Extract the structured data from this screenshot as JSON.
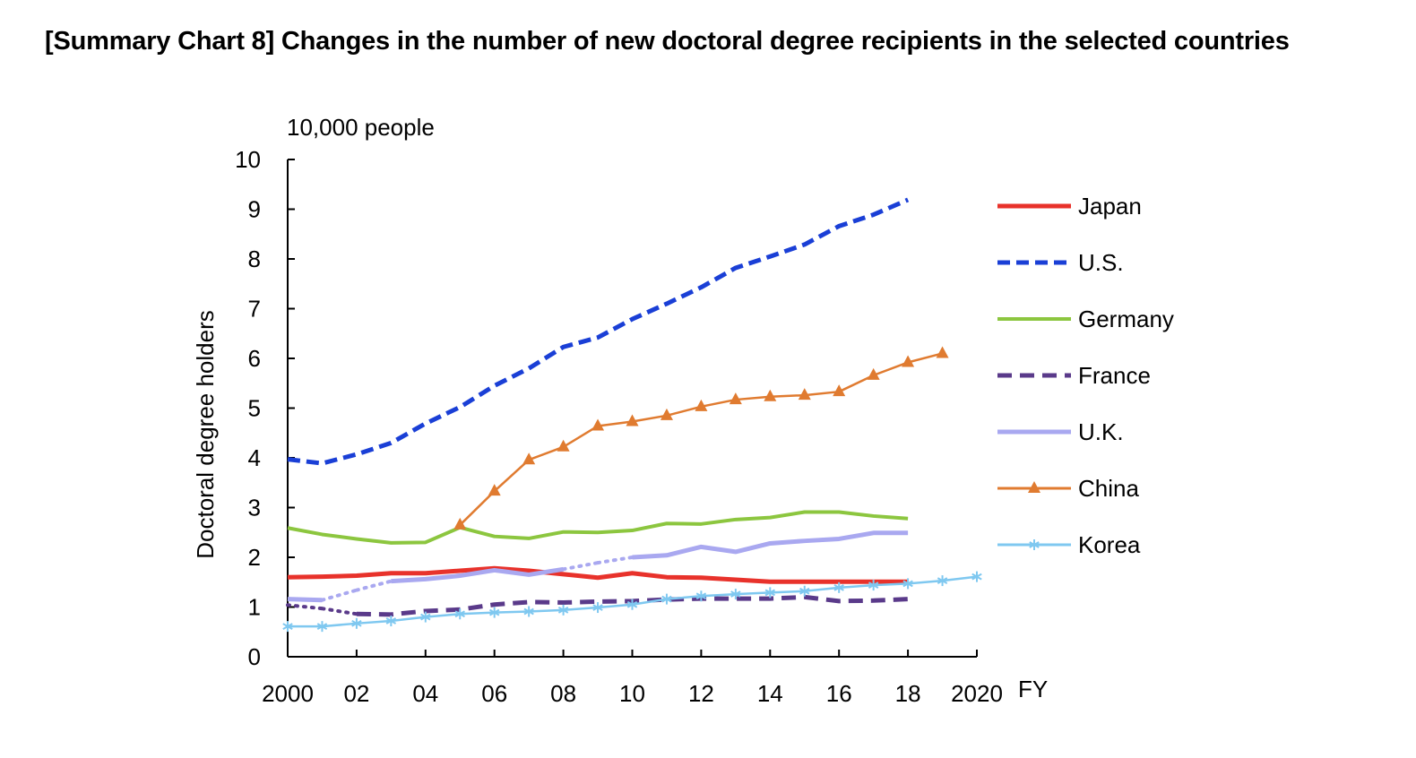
{
  "page_title": "[Summary Chart 8] Changes in the number of new doctoral degree recipients in the selected countries",
  "chart_data": {
    "type": "line",
    "title": "[Summary Chart 8] Changes in the number of new doctoral degree recipients in the selected countries",
    "ylabel": "Doctoral degree holders",
    "yunit": "10,000 people",
    "xlabel": "FY",
    "xlim": [
      2000,
      2020
    ],
    "ylim": [
      0,
      10
    ],
    "x_ticks": [
      2000,
      2002,
      2004,
      2006,
      2008,
      2010,
      2012,
      2014,
      2016,
      2018,
      2020
    ],
    "x_tick_labels": [
      "2000",
      "02",
      "04",
      "06",
      "08",
      "10",
      "12",
      "14",
      "16",
      "18",
      "2020"
    ],
    "y_ticks": [
      0,
      1,
      2,
      3,
      4,
      5,
      6,
      7,
      8,
      9,
      10
    ],
    "y_tick_labels": [
      "0",
      "1",
      "2",
      "3",
      "4",
      "5",
      "6",
      "7",
      "8",
      "9",
      "10"
    ],
    "grid": false,
    "legend_position": "right",
    "series": [
      {
        "name": "Japan",
        "color": "#e8322b",
        "style": "solid",
        "width": 5,
        "marker": "none",
        "x": [
          2000,
          2001,
          2002,
          2003,
          2004,
          2005,
          2006,
          2007,
          2008,
          2009,
          2010,
          2011,
          2012,
          2013,
          2014,
          2015,
          2016,
          2017,
          2018
        ],
        "y": [
          1.6,
          1.61,
          1.63,
          1.68,
          1.68,
          1.73,
          1.78,
          1.73,
          1.66,
          1.59,
          1.68,
          1.6,
          1.59,
          1.55,
          1.51,
          1.51,
          1.51,
          1.51,
          1.51
        ]
      },
      {
        "name": "U.S.",
        "color": "#1a3fd6",
        "style": "dashed",
        "width": 5,
        "marker": "none",
        "x": [
          2000,
          2001,
          2002,
          2003,
          2004,
          2005,
          2006,
          2007,
          2008,
          2009,
          2010,
          2011,
          2012,
          2013,
          2014,
          2015,
          2016,
          2017,
          2018
        ],
        "y": [
          3.97,
          3.89,
          4.07,
          4.3,
          4.69,
          5.02,
          5.45,
          5.8,
          6.23,
          6.42,
          6.79,
          7.1,
          7.43,
          7.82,
          8.05,
          8.29,
          8.66,
          8.89,
          9.19
        ]
      },
      {
        "name": "Germany",
        "color": "#8cc63f",
        "style": "solid",
        "width": 4,
        "marker": "none",
        "x": [
          2000,
          2001,
          2002,
          2003,
          2004,
          2005,
          2006,
          2007,
          2008,
          2009,
          2010,
          2011,
          2012,
          2013,
          2014,
          2015,
          2016,
          2017,
          2018
        ],
        "y": [
          2.59,
          2.46,
          2.37,
          2.29,
          2.3,
          2.6,
          2.42,
          2.38,
          2.51,
          2.5,
          2.54,
          2.68,
          2.67,
          2.76,
          2.8,
          2.91,
          2.91,
          2.83,
          2.78
        ]
      },
      {
        "name": "France",
        "color": "#5a3a8a",
        "style": "dashed",
        "width": 5,
        "marker": "none",
        "dotted_to": 2002,
        "x": [
          2000,
          2001,
          2002,
          2003,
          2004,
          2005,
          2006,
          2007,
          2008,
          2009,
          2010,
          2011,
          2012,
          2013,
          2014,
          2015,
          2016,
          2017,
          2018
        ],
        "y": [
          1.04,
          0.97,
          0.86,
          0.85,
          0.92,
          0.95,
          1.05,
          1.1,
          1.09,
          1.11,
          1.12,
          1.15,
          1.17,
          1.17,
          1.17,
          1.2,
          1.12,
          1.13,
          1.16
        ]
      },
      {
        "name": "U.K.",
        "color": "#a9a8f0",
        "style": "solid",
        "width": 5,
        "marker": "none",
        "gaps": [
          [
            2001,
            2003
          ],
          [
            2008,
            2010
          ]
        ],
        "x": [
          2000,
          2001,
          2002,
          2003,
          2004,
          2005,
          2006,
          2007,
          2008,
          2009,
          2010,
          2011,
          2012,
          2013,
          2014,
          2015,
          2016,
          2017,
          2018
        ],
        "y": [
          1.16,
          1.14,
          1.34,
          1.52,
          1.56,
          1.63,
          1.74,
          1.65,
          1.76,
          1.89,
          2.0,
          2.04,
          2.21,
          2.11,
          2.28,
          2.33,
          2.37,
          2.49,
          2.49
        ]
      },
      {
        "name": "China",
        "color": "#e07b30",
        "style": "solid",
        "width": 2.5,
        "marker": "triangle",
        "x": [
          2005,
          2006,
          2007,
          2008,
          2009,
          2010,
          2011,
          2012,
          2013,
          2014,
          2015,
          2016,
          2017,
          2018,
          2019
        ],
        "y": [
          2.65,
          3.33,
          3.96,
          4.22,
          4.64,
          4.73,
          4.85,
          5.03,
          5.17,
          5.23,
          5.26,
          5.33,
          5.66,
          5.92,
          6.1
        ]
      },
      {
        "name": "Korea",
        "color": "#7fc8f0",
        "style": "solid",
        "width": 2.5,
        "marker": "asterisk",
        "x": [
          2000,
          2001,
          2002,
          2003,
          2004,
          2005,
          2006,
          2007,
          2008,
          2009,
          2010,
          2011,
          2012,
          2013,
          2014,
          2015,
          2016,
          2017,
          2018,
          2019,
          2020
        ],
        "y": [
          0.61,
          0.61,
          0.67,
          0.72,
          0.8,
          0.86,
          0.89,
          0.91,
          0.94,
          0.99,
          1.05,
          1.16,
          1.22,
          1.26,
          1.29,
          1.32,
          1.39,
          1.44,
          1.47,
          1.53,
          1.61
        ]
      }
    ]
  }
}
